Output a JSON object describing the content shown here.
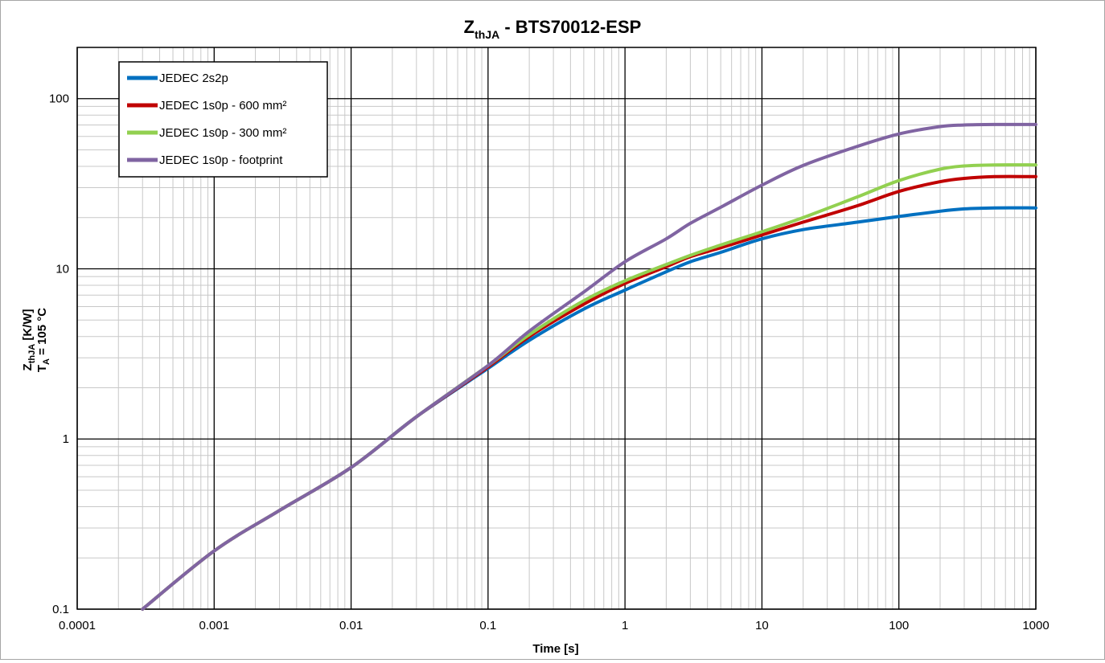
{
  "chart_data": {
    "type": "line",
    "title": {
      "main": "Z",
      "sub": "thJA",
      "rest": " - BTS70012-ESP"
    },
    "xlabel": "Time [s]",
    "ylabel": {
      "line1_main": "Z",
      "line1_sub": "thJA",
      "line1_rest": " [K/W]",
      "line2_main": "T",
      "line2_sub": "A",
      "line2_rest": " = 105 °C"
    },
    "x_scale": "log",
    "y_scale": "log",
    "xlim": [
      0.0001,
      1000
    ],
    "ylim": [
      0.1,
      200
    ],
    "x_ticks": [
      0.0001,
      0.001,
      0.01,
      0.1,
      1,
      10,
      100,
      1000
    ],
    "x_tick_labels": [
      "0.0001",
      "0.001",
      "0.01",
      "0.1",
      "1",
      "10",
      "100",
      "1000"
    ],
    "y_ticks": [
      0.1,
      1,
      10,
      100
    ],
    "y_tick_labels": [
      "0.1",
      "1",
      "10",
      "100"
    ],
    "grid": true,
    "legend_position": "top-left",
    "series": [
      {
        "name": "JEDEC 2s2p",
        "color": "#0070c0",
        "points": [
          [
            0.0003,
            0.1
          ],
          [
            0.001,
            0.22
          ],
          [
            0.003,
            0.38
          ],
          [
            0.01,
            0.68
          ],
          [
            0.03,
            1.35
          ],
          [
            0.1,
            2.6
          ],
          [
            0.2,
            3.8
          ],
          [
            0.5,
            5.8
          ],
          [
            1,
            7.5
          ],
          [
            2,
            9.6
          ],
          [
            3,
            11
          ],
          [
            5,
            12.5
          ],
          [
            10,
            15
          ],
          [
            20,
            17
          ],
          [
            50,
            18.8
          ],
          [
            100,
            20.3
          ],
          [
            200,
            21.8
          ],
          [
            300,
            22.5
          ],
          [
            500,
            22.8
          ],
          [
            1000,
            22.8
          ]
        ]
      },
      {
        "name": "JEDEC 1s0p - 600 mm²",
        "color": "#c00000",
        "points": [
          [
            0.0003,
            0.1
          ],
          [
            0.001,
            0.22
          ],
          [
            0.003,
            0.38
          ],
          [
            0.01,
            0.68
          ],
          [
            0.03,
            1.35
          ],
          [
            0.1,
            2.65
          ],
          [
            0.2,
            4.0
          ],
          [
            0.5,
            6.2
          ],
          [
            1,
            8.2
          ],
          [
            2,
            10.3
          ],
          [
            3,
            11.8
          ],
          [
            5,
            13.3
          ],
          [
            10,
            15.8
          ],
          [
            20,
            18.8
          ],
          [
            50,
            23.5
          ],
          [
            100,
            28.5
          ],
          [
            200,
            32.5
          ],
          [
            300,
            34
          ],
          [
            500,
            34.8
          ],
          [
            1000,
            34.8
          ]
        ]
      },
      {
        "name": "JEDEC 1s0p - 300 mm²",
        "color": "#92d050",
        "points": [
          [
            0.0003,
            0.1
          ],
          [
            0.001,
            0.22
          ],
          [
            0.003,
            0.38
          ],
          [
            0.01,
            0.68
          ],
          [
            0.03,
            1.35
          ],
          [
            0.1,
            2.7
          ],
          [
            0.2,
            4.1
          ],
          [
            0.5,
            6.5
          ],
          [
            1,
            8.5
          ],
          [
            2,
            10.6
          ],
          [
            3,
            12
          ],
          [
            5,
            13.8
          ],
          [
            10,
            16.5
          ],
          [
            20,
            20
          ],
          [
            50,
            26.5
          ],
          [
            100,
            33
          ],
          [
            200,
            38.5
          ],
          [
            300,
            40.2
          ],
          [
            500,
            40.8
          ],
          [
            1000,
            40.8
          ]
        ]
      },
      {
        "name": "JEDEC 1s0p - footprint",
        "color": "#8064a2",
        "points": [
          [
            0.0003,
            0.1
          ],
          [
            0.001,
            0.22
          ],
          [
            0.003,
            0.38
          ],
          [
            0.01,
            0.68
          ],
          [
            0.03,
            1.35
          ],
          [
            0.1,
            2.7
          ],
          [
            0.2,
            4.3
          ],
          [
            0.5,
            7.3
          ],
          [
            1,
            11
          ],
          [
            2,
            15
          ],
          [
            3,
            18.5
          ],
          [
            5,
            23
          ],
          [
            10,
            31
          ],
          [
            20,
            40.5
          ],
          [
            50,
            52.5
          ],
          [
            100,
            62
          ],
          [
            200,
            68.5
          ],
          [
            300,
            70
          ],
          [
            500,
            70.5
          ],
          [
            1000,
            70.5
          ]
        ]
      }
    ]
  }
}
